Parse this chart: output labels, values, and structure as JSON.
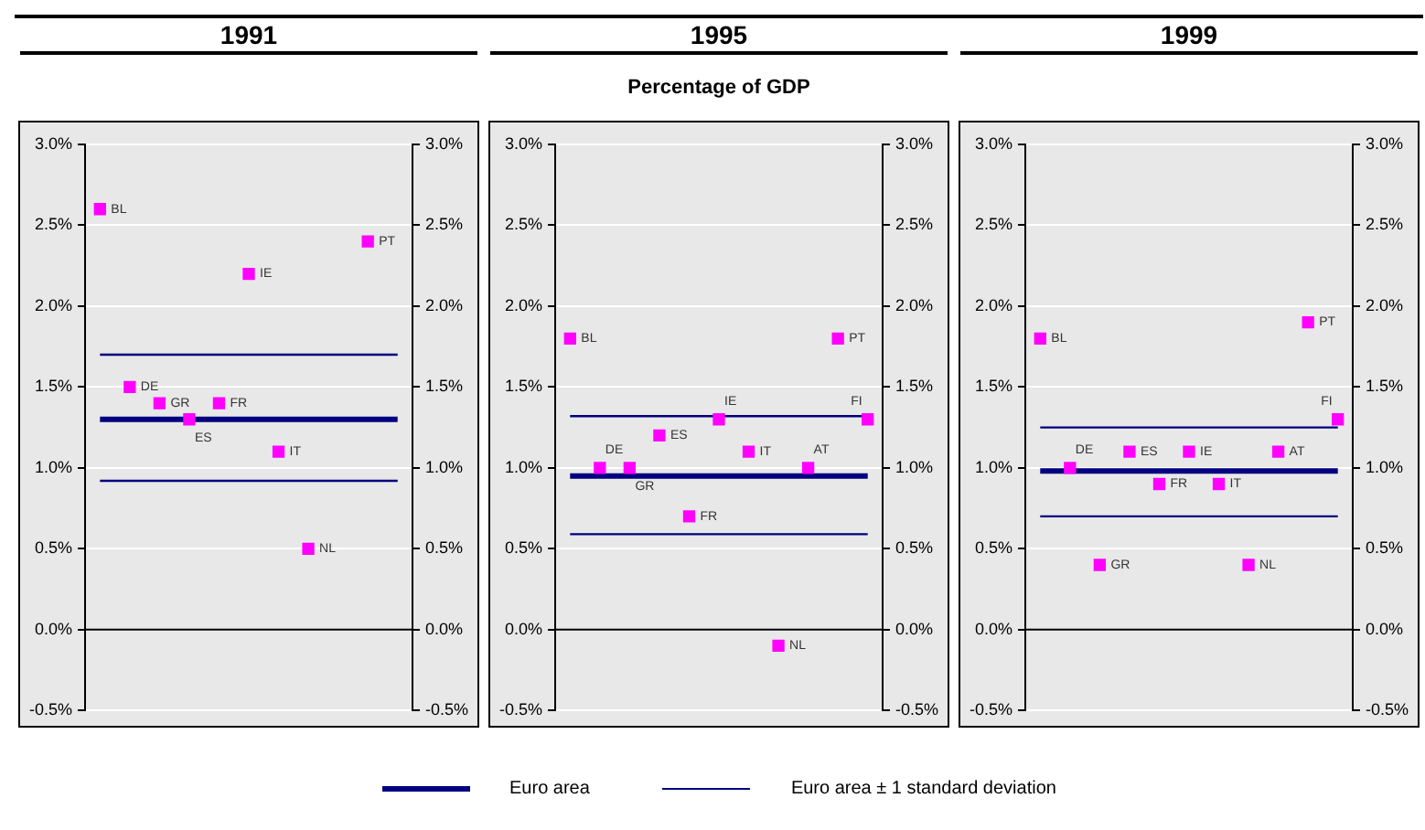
{
  "chart_data": [
    {
      "type": "scatter",
      "title": "1991",
      "categories": [
        null,
        null,
        null,
        null,
        null,
        null,
        null,
        null,
        null,
        null,
        null
      ],
      "series": [
        {
          "name": "BL",
          "color": "#ff00ff",
          "values": [
            2.6,
            null,
            null,
            null,
            null,
            null,
            null,
            null,
            null,
            null,
            null
          ]
        },
        {
          "name": "DE",
          "color": "#ff00ff",
          "values": [
            null,
            1.5,
            null,
            null,
            null,
            null,
            null,
            null,
            null,
            null,
            null
          ]
        },
        {
          "name": "GR",
          "color": "#ff00ff",
          "values": [
            null,
            null,
            1.4,
            null,
            null,
            null,
            null,
            null,
            null,
            null,
            null
          ]
        },
        {
          "name": "ES",
          "color": "#ff00ff",
          "values": [
            null,
            null,
            null,
            1.3,
            null,
            null,
            null,
            null,
            null,
            null,
            null
          ]
        },
        {
          "name": "FR",
          "color": "#ff00ff",
          "values": [
            null,
            null,
            null,
            null,
            1.4,
            null,
            null,
            null,
            null,
            null,
            null
          ]
        },
        {
          "name": "IE",
          "color": "#ff00ff",
          "values": [
            null,
            null,
            null,
            null,
            null,
            2.2,
            null,
            null,
            null,
            null,
            null
          ]
        },
        {
          "name": "IT",
          "color": "#ff00ff",
          "values": [
            null,
            null,
            null,
            null,
            null,
            null,
            1.1,
            null,
            null,
            null,
            null
          ]
        },
        {
          "name": "NL",
          "color": "#ff00ff",
          "values": [
            null,
            null,
            null,
            null,
            null,
            null,
            null,
            0.5,
            null,
            null,
            null
          ]
        },
        {
          "name": "PT",
          "color": "#ff00ff",
          "values": [
            null,
            null,
            null,
            null,
            null,
            null,
            null,
            null,
            null,
            2.4,
            null
          ]
        },
        {
          "name": "Euro area",
          "type": "line",
          "marker": "none",
          "color": "#000080",
          "values": [
            1.3,
            1.3,
            1.3,
            1.3,
            1.3,
            1.3,
            1.3,
            1.3,
            1.3,
            1.3,
            1.3
          ]
        },
        {
          "name": "Euro area ± 1 standard deviation",
          "type": "line",
          "marker": "none",
          "color": "#000080",
          "values": [
            1.7,
            1.7,
            1.7,
            1.7,
            1.7,
            1.7,
            1.7,
            1.7,
            1.7,
            1.7,
            1.7
          ]
        },
        {
          "type": "line",
          "marker": "none",
          "color": "#000080",
          "values": [
            0.92,
            0.92,
            0.92,
            0.92,
            0.92,
            0.92,
            0.92,
            0.92,
            0.92,
            0.92,
            0.92
          ]
        }
      ],
      "marker": "square",
      "ylim": [
        -0.5,
        3
      ],
      "yticks": [
        {
          "value": -0.5,
          "label": "-0.5%"
        },
        {
          "value": 0,
          "label": "0.0%"
        },
        {
          "value": 0.5,
          "label": "0.5%"
        },
        {
          "value": 1,
          "label": "1.0%"
        },
        {
          "value": 1.5,
          "label": "1.5%"
        },
        {
          "value": 2,
          "label": "2.0%"
        },
        {
          "value": 2.5,
          "label": "2.5%"
        },
        {
          "value": 3,
          "label": "3.0%"
        }
      ],
      "y2lim": [
        -0.5,
        3
      ],
      "y2ticks": [
        {
          "value": -0.5,
          "label": "-0.5%"
        },
        {
          "value": 0,
          "label": "0.0%"
        },
        {
          "value": 0.5,
          "label": "0.5%"
        },
        {
          "value": 1,
          "label": "1.0%"
        },
        {
          "value": 1.5,
          "label": "1.5%"
        },
        {
          "value": 2,
          "label": "2.0%"
        },
        {
          "value": 2.5,
          "label": "2.5%"
        },
        {
          "value": 3,
          "label": "3.0%"
        }
      ],
      "ref_lines": [
        {
          "axis": "y",
          "value": 0,
          "color": "#000000"
        }
      ],
      "grid": "y",
      "tick_labels": "y",
      "legend": "bottom"
    },
    {
      "type": "scatter",
      "title": "1995",
      "subtitle": "Percentage of GDP",
      "categories": [
        null,
        null,
        null,
        null,
        null,
        null,
        null,
        null,
        null,
        null,
        null
      ],
      "series": [
        {
          "name": "BL",
          "color": "#ff00ff",
          "values": [
            1.8,
            null,
            null,
            null,
            null,
            null,
            null,
            null,
            null,
            null,
            null
          ]
        },
        {
          "name": "DE",
          "color": "#ff00ff",
          "values": [
            null,
            1.0,
            null,
            null,
            null,
            null,
            null,
            null,
            null,
            null,
            null
          ]
        },
        {
          "name": "GR",
          "color": "#ff00ff",
          "values": [
            null,
            null,
            1.0,
            null,
            null,
            null,
            null,
            null,
            null,
            null,
            null
          ]
        },
        {
          "name": "ES",
          "color": "#ff00ff",
          "values": [
            null,
            null,
            null,
            1.2,
            null,
            null,
            null,
            null,
            null,
            null,
            null
          ]
        },
        {
          "name": "FR",
          "color": "#ff00ff",
          "values": [
            null,
            null,
            null,
            null,
            0.7,
            null,
            null,
            null,
            null,
            null,
            null
          ]
        },
        {
          "name": "IE",
          "color": "#ff00ff",
          "values": [
            null,
            null,
            null,
            null,
            null,
            1.3,
            null,
            null,
            null,
            null,
            null
          ]
        },
        {
          "name": "IT",
          "color": "#ff00ff",
          "values": [
            null,
            null,
            null,
            null,
            null,
            null,
            1.1,
            null,
            null,
            null,
            null
          ]
        },
        {
          "name": "NL",
          "color": "#ff00ff",
          "values": [
            null,
            null,
            null,
            null,
            null,
            null,
            null,
            -0.1,
            null,
            null,
            null
          ]
        },
        {
          "name": "AT",
          "color": "#ff00ff",
          "values": [
            null,
            null,
            null,
            null,
            null,
            null,
            null,
            null,
            1.0,
            null,
            null
          ]
        },
        {
          "name": "PT",
          "color": "#ff00ff",
          "values": [
            null,
            null,
            null,
            null,
            null,
            null,
            null,
            null,
            null,
            1.8,
            null
          ]
        },
        {
          "name": "FI",
          "color": "#ff00ff",
          "values": [
            null,
            null,
            null,
            null,
            null,
            null,
            null,
            null,
            null,
            null,
            1.3
          ]
        },
        {
          "type": "line",
          "marker": "none",
          "color": "#000080",
          "values": [
            0.95,
            0.95,
            0.95,
            0.95,
            0.95,
            0.95,
            0.95,
            0.95,
            0.95,
            0.95,
            0.95
          ]
        },
        {
          "type": "line",
          "marker": "none",
          "color": "#000080",
          "values": [
            1.32,
            1.32,
            1.32,
            1.32,
            1.32,
            1.32,
            1.32,
            1.32,
            1.32,
            1.32,
            1.32
          ]
        },
        {
          "type": "line",
          "marker": "none",
          "color": "#000080",
          "values": [
            0.59,
            0.59,
            0.59,
            0.59,
            0.59,
            0.59,
            0.59,
            0.59,
            0.59,
            0.59,
            0.59
          ]
        }
      ],
      "marker": "square",
      "ylim": [
        -0.5,
        3
      ],
      "yticks": [
        {
          "value": -0.5,
          "label": "-0.5%"
        },
        {
          "value": 0,
          "label": "0.0%"
        },
        {
          "value": 0.5,
          "label": "0.5%"
        },
        {
          "value": 1,
          "label": "1.0%"
        },
        {
          "value": 1.5,
          "label": "1.5%"
        },
        {
          "value": 2,
          "label": "2.0%"
        },
        {
          "value": 2.5,
          "label": "2.5%"
        },
        {
          "value": 3,
          "label": "3.0%"
        }
      ],
      "y2lim": [
        -0.5,
        3
      ],
      "y2ticks": [
        {
          "value": -0.5,
          "label": "-0.5%"
        },
        {
          "value": 0,
          "label": "0.0%"
        },
        {
          "value": 0.5,
          "label": "0.5%"
        },
        {
          "value": 1,
          "label": "1.0%"
        },
        {
          "value": 1.5,
          "label": "1.5%"
        },
        {
          "value": 2,
          "label": "2.0%"
        },
        {
          "value": 2.5,
          "label": "2.5%"
        },
        {
          "value": 3,
          "label": "3.0%"
        }
      ],
      "ref_lines": [
        {
          "axis": "y",
          "value": 0,
          "color": "#000000"
        }
      ],
      "grid": "y",
      "tick_labels": "y"
    },
    {
      "type": "scatter",
      "title": "1999",
      "categories": [
        null,
        null,
        null,
        null,
        null,
        null,
        null,
        null,
        null,
        null,
        null
      ],
      "series": [
        {
          "name": "BL",
          "color": "#ff00ff",
          "values": [
            1.8,
            null,
            null,
            null,
            null,
            null,
            null,
            null,
            null,
            null,
            null
          ]
        },
        {
          "name": "DE",
          "color": "#ff00ff",
          "values": [
            null,
            1.0,
            null,
            null,
            null,
            null,
            null,
            null,
            null,
            null,
            null
          ]
        },
        {
          "name": "GR",
          "color": "#ff00ff",
          "values": [
            null,
            null,
            0.4,
            null,
            null,
            null,
            null,
            null,
            null,
            null,
            null
          ]
        },
        {
          "name": "ES",
          "color": "#ff00ff",
          "values": [
            null,
            null,
            null,
            1.1,
            null,
            null,
            null,
            null,
            null,
            null,
            null
          ]
        },
        {
          "name": "FR",
          "color": "#ff00ff",
          "values": [
            null,
            null,
            null,
            null,
            0.9,
            null,
            null,
            null,
            null,
            null,
            null
          ]
        },
        {
          "name": "IE",
          "color": "#ff00ff",
          "values": [
            null,
            null,
            null,
            null,
            null,
            1.1,
            null,
            null,
            null,
            null,
            null
          ]
        },
        {
          "name": "IT",
          "color": "#ff00ff",
          "values": [
            null,
            null,
            null,
            null,
            null,
            null,
            0.9,
            null,
            null,
            null,
            null
          ]
        },
        {
          "name": "NL",
          "color": "#ff00ff",
          "values": [
            null,
            null,
            null,
            null,
            null,
            null,
            null,
            0.4,
            null,
            null,
            null
          ]
        },
        {
          "name": "AT",
          "color": "#ff00ff",
          "values": [
            null,
            null,
            null,
            null,
            null,
            null,
            null,
            null,
            1.1,
            null,
            null
          ]
        },
        {
          "name": "PT",
          "color": "#ff00ff",
          "values": [
            null,
            null,
            null,
            null,
            null,
            null,
            null,
            null,
            null,
            1.9,
            null
          ]
        },
        {
          "name": "FI",
          "color": "#ff00ff",
          "values": [
            null,
            null,
            null,
            null,
            null,
            null,
            null,
            null,
            null,
            null,
            1.3
          ]
        },
        {
          "type": "line",
          "marker": "none",
          "color": "#000080",
          "values": [
            0.98,
            0.98,
            0.98,
            0.98,
            0.98,
            0.98,
            0.98,
            0.98,
            0.98,
            0.98,
            0.98
          ]
        },
        {
          "type": "line",
          "marker": "none",
          "color": "#000080",
          "values": [
            1.25,
            1.25,
            1.25,
            1.25,
            1.25,
            1.25,
            1.25,
            1.25,
            1.25,
            1.25,
            1.25
          ]
        },
        {
          "type": "line",
          "marker": "none",
          "color": "#000080",
          "values": [
            0.7,
            0.7,
            0.7,
            0.7,
            0.7,
            0.7,
            0.7,
            0.7,
            0.7,
            0.7,
            0.7
          ]
        }
      ],
      "marker": "square",
      "ylim": [
        -0.5,
        3
      ],
      "yticks": [
        {
          "value": -0.5,
          "label": "-0.5%"
        },
        {
          "value": 0,
          "label": "0.0%"
        },
        {
          "value": 0.5,
          "label": "0.5%"
        },
        {
          "value": 1,
          "label": "1.0%"
        },
        {
          "value": 1.5,
          "label": "1.5%"
        },
        {
          "value": 2,
          "label": "2.0%"
        },
        {
          "value": 2.5,
          "label": "2.5%"
        },
        {
          "value": 3,
          "label": "3.0%"
        }
      ],
      "y2lim": [
        -0.5,
        3
      ],
      "y2ticks": [
        {
          "value": -0.5,
          "label": "-0.5%"
        },
        {
          "value": 0,
          "label": "0.0%"
        },
        {
          "value": 0.5,
          "label": "0.5%"
        },
        {
          "value": 1,
          "label": "1.0%"
        },
        {
          "value": 1.5,
          "label": "1.5%"
        },
        {
          "value": 2,
          "label": "2.0%"
        },
        {
          "value": 2.5,
          "label": "2.5%"
        },
        {
          "value": 3,
          "label": "3.0%"
        }
      ],
      "ref_lines": [
        {
          "axis": "y",
          "value": 0,
          "color": "#000000"
        }
      ],
      "grid": "y",
      "tick_labels": "y"
    }
  ]
}
